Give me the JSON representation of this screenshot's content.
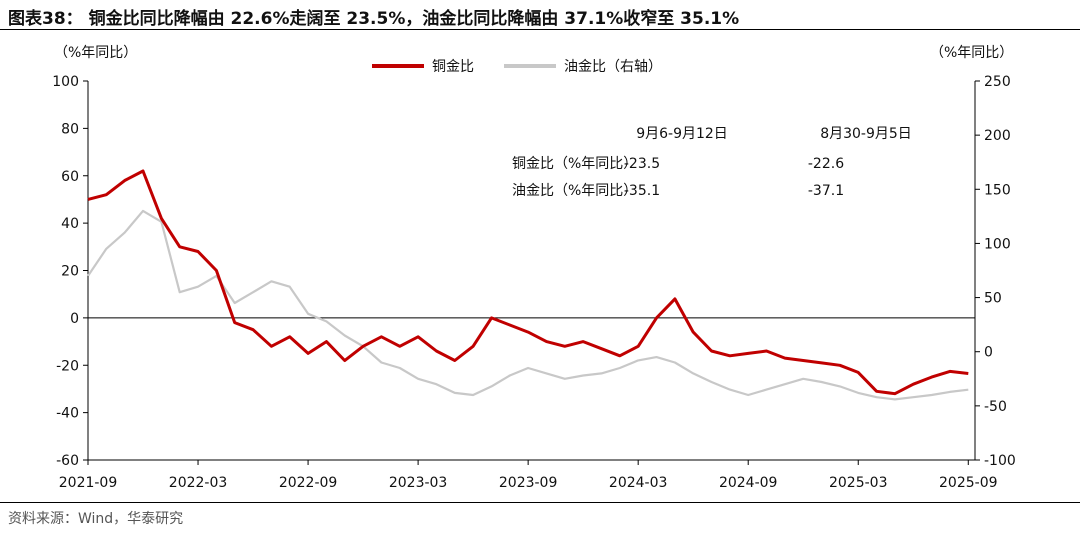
{
  "title": "图表38： 铜金比同比降幅由 22.6%走阔至 23.5%，油金比同比降幅由 37.1%收窄至 35.1%",
  "source": "资料来源：Wind，华泰研究",
  "colors": {
    "copper_gold": "#c00000",
    "oil_gold": "#c8c8c8"
  },
  "chart_data": {
    "type": "line",
    "y_left_label": "（%年同比）",
    "y_right_label": "（%年同比）",
    "ylim_left": [
      -60,
      100
    ],
    "ylim_right": [
      -100,
      250
    ],
    "yticks_left": [
      "100",
      "80",
      "60",
      "40",
      "20",
      "0",
      "-20",
      "-40",
      "-60"
    ],
    "yticks_right": [
      "250",
      "200",
      "150",
      "100",
      "50",
      "0",
      "-50",
      "-100"
    ],
    "x_ticks": [
      "2021-09",
      "2022-03",
      "2022-09",
      "2023-03",
      "2023-09",
      "2024-03",
      "2024-09",
      "2025-03",
      "2025-09"
    ],
    "xlim": [
      "2021-09",
      "2025-09-12"
    ],
    "legend_position": "top-center",
    "series": [
      {
        "name": "铜金比",
        "axis": "left",
        "points": [
          [
            "2021-09",
            50
          ],
          [
            "2021-10",
            52
          ],
          [
            "2021-11",
            58
          ],
          [
            "2021-12",
            62
          ],
          [
            "2022-01",
            42
          ],
          [
            "2022-02",
            30
          ],
          [
            "2022-03",
            28
          ],
          [
            "2022-04",
            20
          ],
          [
            "2022-05",
            -2
          ],
          [
            "2022-06",
            -5
          ],
          [
            "2022-07",
            -12
          ],
          [
            "2022-08",
            -8
          ],
          [
            "2022-09",
            -15
          ],
          [
            "2022-10",
            -10
          ],
          [
            "2022-11",
            -18
          ],
          [
            "2022-12",
            -12
          ],
          [
            "2023-01",
            -8
          ],
          [
            "2023-02",
            -12
          ],
          [
            "2023-03",
            -8
          ],
          [
            "2023-04",
            -14
          ],
          [
            "2023-05",
            -18
          ],
          [
            "2023-06",
            -12
          ],
          [
            "2023-07",
            0
          ],
          [
            "2023-08",
            -3
          ],
          [
            "2023-09",
            -6
          ],
          [
            "2023-10",
            -10
          ],
          [
            "2023-11",
            -12
          ],
          [
            "2023-12",
            -10
          ],
          [
            "2024-01",
            -13
          ],
          [
            "2024-02",
            -16
          ],
          [
            "2024-03",
            -12
          ],
          [
            "2024-04",
            0
          ],
          [
            "2024-05",
            8
          ],
          [
            "2024-06",
            -6
          ],
          [
            "2024-07",
            -14
          ],
          [
            "2024-08",
            -16
          ],
          [
            "2024-09",
            -15
          ],
          [
            "2024-10",
            -14
          ],
          [
            "2024-11",
            -17
          ],
          [
            "2024-12",
            -18
          ],
          [
            "2025-01",
            -19
          ],
          [
            "2025-02",
            -20
          ],
          [
            "2025-03",
            -23
          ],
          [
            "2025-04",
            -31
          ],
          [
            "2025-05",
            -32
          ],
          [
            "2025-06",
            -28
          ],
          [
            "2025-07",
            -25
          ],
          [
            "2025-08",
            -22.6
          ],
          [
            "2025-09",
            -23.5
          ]
        ]
      },
      {
        "name": "油金比（右轴）",
        "axis": "right",
        "points": [
          [
            "2021-09",
            70
          ],
          [
            "2021-10",
            95
          ],
          [
            "2021-11",
            110
          ],
          [
            "2021-12",
            130
          ],
          [
            "2022-01",
            120
          ],
          [
            "2022-02",
            55
          ],
          [
            "2022-03",
            60
          ],
          [
            "2022-04",
            70
          ],
          [
            "2022-05",
            45
          ],
          [
            "2022-06",
            55
          ],
          [
            "2022-07",
            65
          ],
          [
            "2022-08",
            60
          ],
          [
            "2022-09",
            35
          ],
          [
            "2022-10",
            28
          ],
          [
            "2022-11",
            15
          ],
          [
            "2022-12",
            5
          ],
          [
            "2023-01",
            -10
          ],
          [
            "2023-02",
            -15
          ],
          [
            "2023-03",
            -25
          ],
          [
            "2023-04",
            -30
          ],
          [
            "2023-05",
            -38
          ],
          [
            "2023-06",
            -40
          ],
          [
            "2023-07",
            -32
          ],
          [
            "2023-08",
            -22
          ],
          [
            "2023-09",
            -15
          ],
          [
            "2023-10",
            -20
          ],
          [
            "2023-11",
            -25
          ],
          [
            "2023-12",
            -22
          ],
          [
            "2024-01",
            -20
          ],
          [
            "2024-02",
            -15
          ],
          [
            "2024-03",
            -8
          ],
          [
            "2024-04",
            -5
          ],
          [
            "2024-05",
            -10
          ],
          [
            "2024-06",
            -20
          ],
          [
            "2024-07",
            -28
          ],
          [
            "2024-08",
            -35
          ],
          [
            "2024-09",
            -40
          ],
          [
            "2024-10",
            -35
          ],
          [
            "2024-11",
            -30
          ],
          [
            "2024-12",
            -25
          ],
          [
            "2025-01",
            -28
          ],
          [
            "2025-02",
            -32
          ],
          [
            "2025-03",
            -38
          ],
          [
            "2025-04",
            -42
          ],
          [
            "2025-05",
            -44
          ],
          [
            "2025-06",
            -42
          ],
          [
            "2025-07",
            -40
          ],
          [
            "2025-08",
            -37.1
          ],
          [
            "2025-09",
            -35.1
          ]
        ]
      }
    ],
    "table": {
      "headers": [
        "9月6-9月12日",
        "8月30-9月5日"
      ],
      "rows": [
        {
          "label": "铜金比（%年同比）",
          "values": [
            "-23.5",
            "-22.6"
          ]
        },
        {
          "label": "油金比（%年同比）",
          "values": [
            "-35.1",
            "-37.1"
          ]
        }
      ]
    }
  }
}
